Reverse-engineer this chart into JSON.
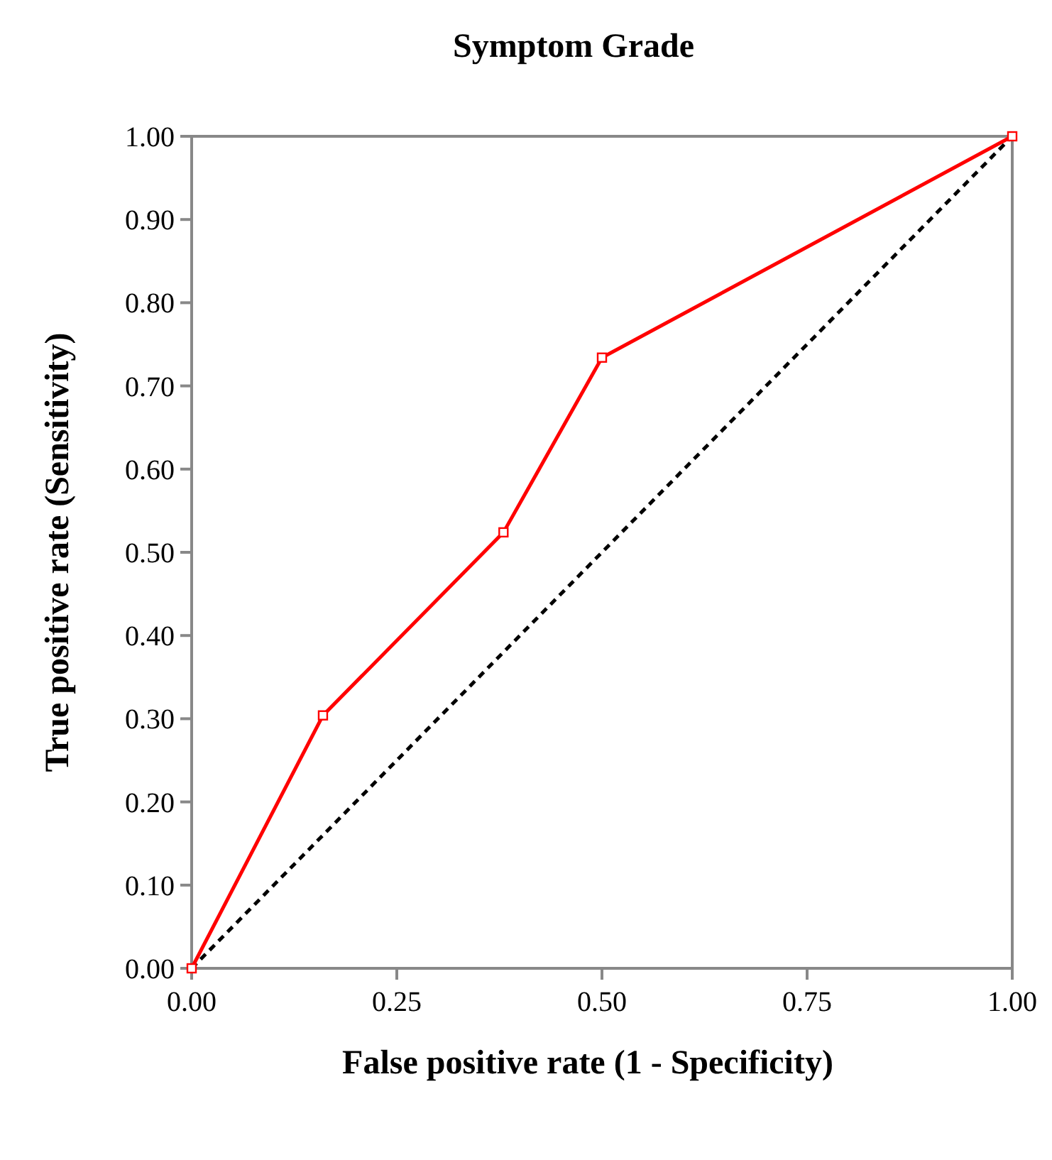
{
  "chart_data": {
    "type": "line",
    "title": "Symptom Grade",
    "xlabel": "False positive rate (1 - Specificity)",
    "ylabel": "True positive rate (Sensitivity)",
    "xlim": [
      0,
      1
    ],
    "ylim": [
      0,
      1
    ],
    "xticks": [
      {
        "value": 0,
        "label": "0.00"
      },
      {
        "value": 0.25,
        "label": "0.25"
      },
      {
        "value": 0.5,
        "label": "0.50"
      },
      {
        "value": 0.75,
        "label": "0.75"
      },
      {
        "value": 1,
        "label": "1.00"
      }
    ],
    "yticks": [
      {
        "value": 0,
        "label": "0.00"
      },
      {
        "value": 0.1,
        "label": "0.10"
      },
      {
        "value": 0.2,
        "label": "0.20"
      },
      {
        "value": 0.3,
        "label": "0.30"
      },
      {
        "value": 0.4,
        "label": "0.40"
      },
      {
        "value": 0.5,
        "label": "0.50"
      },
      {
        "value": 0.6,
        "label": "0.60"
      },
      {
        "value": 0.7,
        "label": "0.70"
      },
      {
        "value": 0.8,
        "label": "0.80"
      },
      {
        "value": 0.9,
        "label": "0.90"
      },
      {
        "value": 1,
        "label": "1.00"
      }
    ],
    "series": [
      {
        "color": "#ff0000",
        "x": [
          0,
          0.16,
          0.38,
          0.5,
          1
        ],
        "values": [
          0,
          0.304,
          0.524,
          0.734,
          1
        ],
        "marker": "square",
        "line_style": "solid"
      },
      {
        "color": "#000000",
        "x": [
          0,
          1
        ],
        "values": [
          0,
          1
        ],
        "marker": "none",
        "line_style": "dashed"
      }
    ]
  }
}
